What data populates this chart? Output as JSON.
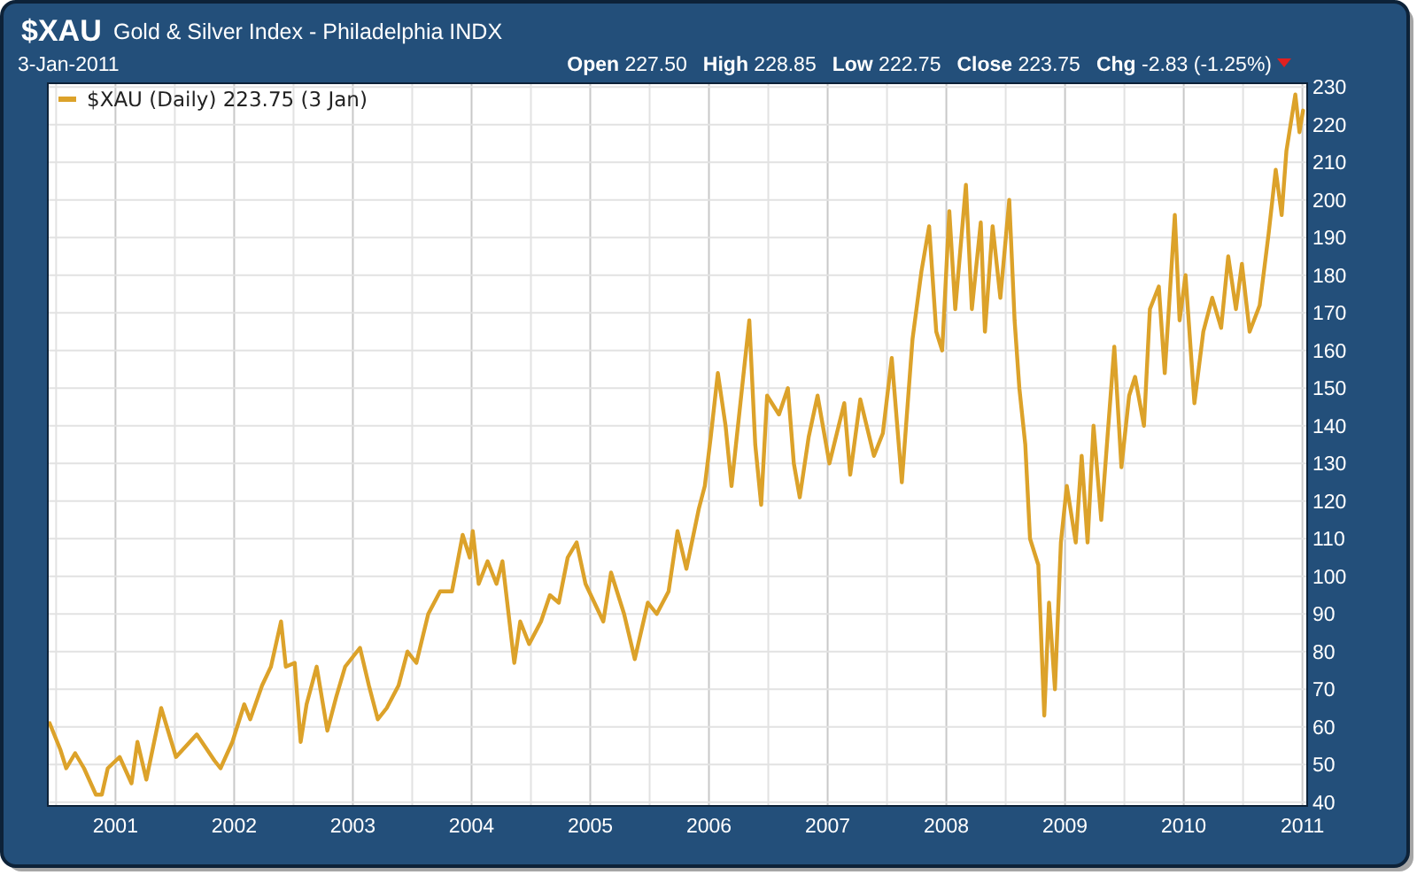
{
  "chart_data": {
    "type": "line",
    "title": "$XAU",
    "subtitle": "Gold & Silver Index - Philadelphia INDX",
    "annotations": [
      "3-Jan-2011",
      "Open 227.50",
      "High 228.85",
      "Low 222.75",
      "Close 223.75",
      "Chg -2.83 (-1.25%)"
    ],
    "series": [
      {
        "name": "$XAU (Daily) 223.75 (3 Jan)",
        "color": "#dca22a",
        "x": [
          2000.445,
          2000.535,
          2000.585,
          2000.66,
          2000.735,
          2000.835,
          2000.885,
          2000.935,
          2001.035,
          2001.135,
          2001.185,
          2001.26,
          2001.385,
          2001.51,
          2001.685,
          2001.835,
          2001.885,
          2001.985,
          2002.085,
          2002.135,
          2002.235,
          2002.31,
          2002.395,
          2002.435,
          2002.51,
          2002.56,
          2002.61,
          2002.695,
          2002.785,
          2002.86,
          2002.935,
          2003.06,
          2003.135,
          2003.21,
          2003.285,
          2003.385,
          2003.46,
          2003.535,
          2003.635,
          2003.735,
          2003.835,
          2003.925,
          2003.985,
          2004.01,
          2004.06,
          2004.135,
          2004.21,
          2004.26,
          2004.36,
          2004.41,
          2004.485,
          2004.585,
          2004.66,
          2004.735,
          2004.81,
          2004.885,
          2004.96,
          2005.11,
          2005.175,
          2005.285,
          2005.375,
          2005.485,
          2005.56,
          2005.66,
          2005.735,
          2005.81,
          2005.915,
          2005.965,
          2006.015,
          2006.075,
          2006.14,
          2006.19,
          2006.265,
          2006.34,
          2006.39,
          2006.44,
          2006.49,
          2006.59,
          2006.665,
          2006.715,
          2006.765,
          2006.84,
          2006.915,
          2007.015,
          2007.14,
          2007.19,
          2007.275,
          2007.39,
          2007.465,
          2007.54,
          2007.625,
          2007.715,
          2007.79,
          2007.855,
          2007.915,
          2007.965,
          2008.025,
          2008.075,
          2008.165,
          2008.215,
          2008.29,
          2008.325,
          2008.39,
          2008.455,
          2008.53,
          2008.575,
          2008.615,
          2008.665,
          2008.705,
          2008.775,
          2008.825,
          2008.865,
          2008.915,
          2008.965,
          2009.015,
          2009.09,
          2009.14,
          2009.19,
          2009.24,
          2009.305,
          2009.415,
          2009.475,
          2009.54,
          2009.59,
          2009.665,
          2009.715,
          2009.79,
          2009.84,
          2009.925,
          2009.965,
          2010.015,
          2010.09,
          2010.165,
          2010.24,
          2010.315,
          2010.375,
          2010.44,
          2010.49,
          2010.555,
          2010.64,
          2010.715,
          2010.775,
          2010.825,
          2010.865,
          2010.94,
          2010.975,
          2011.005
        ],
        "values": [
          61,
          54,
          49,
          53,
          49,
          42,
          42,
          49,
          52,
          45,
          56,
          46,
          65,
          52,
          58,
          51,
          49,
          56,
          66,
          62,
          71,
          76,
          88,
          76,
          77,
          56,
          66,
          76,
          59,
          68,
          76,
          81,
          71,
          62,
          65,
          71,
          80,
          77,
          90,
          96,
          96,
          111,
          105,
          112,
          98,
          104,
          98,
          104,
          77,
          88,
          82,
          88,
          95,
          93,
          105,
          109,
          98,
          88,
          101,
          90,
          78,
          93,
          90,
          96,
          112,
          102,
          118,
          124,
          137,
          154,
          140,
          124,
          146,
          168,
          135,
          119,
          148,
          143,
          150,
          130,
          121,
          137,
          148,
          130,
          146,
          127,
          147,
          132,
          138,
          158,
          125,
          163,
          181,
          193,
          165,
          160,
          197,
          171,
          204,
          171,
          194,
          165,
          193,
          174,
          200,
          168,
          150,
          135,
          110,
          103,
          63,
          93,
          70,
          109,
          124,
          109,
          132,
          109,
          140,
          115,
          161,
          129,
          148,
          153,
          140,
          171,
          177,
          154,
          196,
          168,
          180,
          146,
          165,
          174,
          166,
          185,
          171,
          183,
          165,
          172,
          191,
          208,
          196,
          213,
          228,
          218,
          223.75
        ]
      }
    ],
    "xlim": [
      2000.43,
      2011.04
    ],
    "xticks": [
      {
        "value": 2000.5,
        "label": null
      },
      {
        "value": 2001,
        "label": "2001"
      },
      {
        "value": 2001.5,
        "label": null
      },
      {
        "value": 2002,
        "label": "2002"
      },
      {
        "value": 2002.5,
        "label": null
      },
      {
        "value": 2003,
        "label": "2003"
      },
      {
        "value": 2003.5,
        "label": null
      },
      {
        "value": 2004,
        "label": "2004"
      },
      {
        "value": 2004.5,
        "label": null
      },
      {
        "value": 2005,
        "label": "2005"
      },
      {
        "value": 2005.5,
        "label": null
      },
      {
        "value": 2006,
        "label": "2006"
      },
      {
        "value": 2006.5,
        "label": null
      },
      {
        "value": 2007,
        "label": "2007"
      },
      {
        "value": 2007.5,
        "label": null
      },
      {
        "value": 2008,
        "label": "2008"
      },
      {
        "value": 2008.5,
        "label": null
      },
      {
        "value": 2009,
        "label": "2009"
      },
      {
        "value": 2009.5,
        "label": null
      },
      {
        "value": 2010,
        "label": "2010"
      },
      {
        "value": 2010.5,
        "label": null
      },
      {
        "value": 2011,
        "label": "2011"
      }
    ],
    "ylim": [
      39,
      231
    ],
    "yticks": [
      40,
      50,
      60,
      70,
      80,
      90,
      100,
      110,
      120,
      130,
      140,
      150,
      160,
      170,
      180,
      190,
      200,
      210,
      220,
      230
    ],
    "grid": true,
    "legend": "top left",
    "line_style": "solid",
    "marker": "none"
  }
}
